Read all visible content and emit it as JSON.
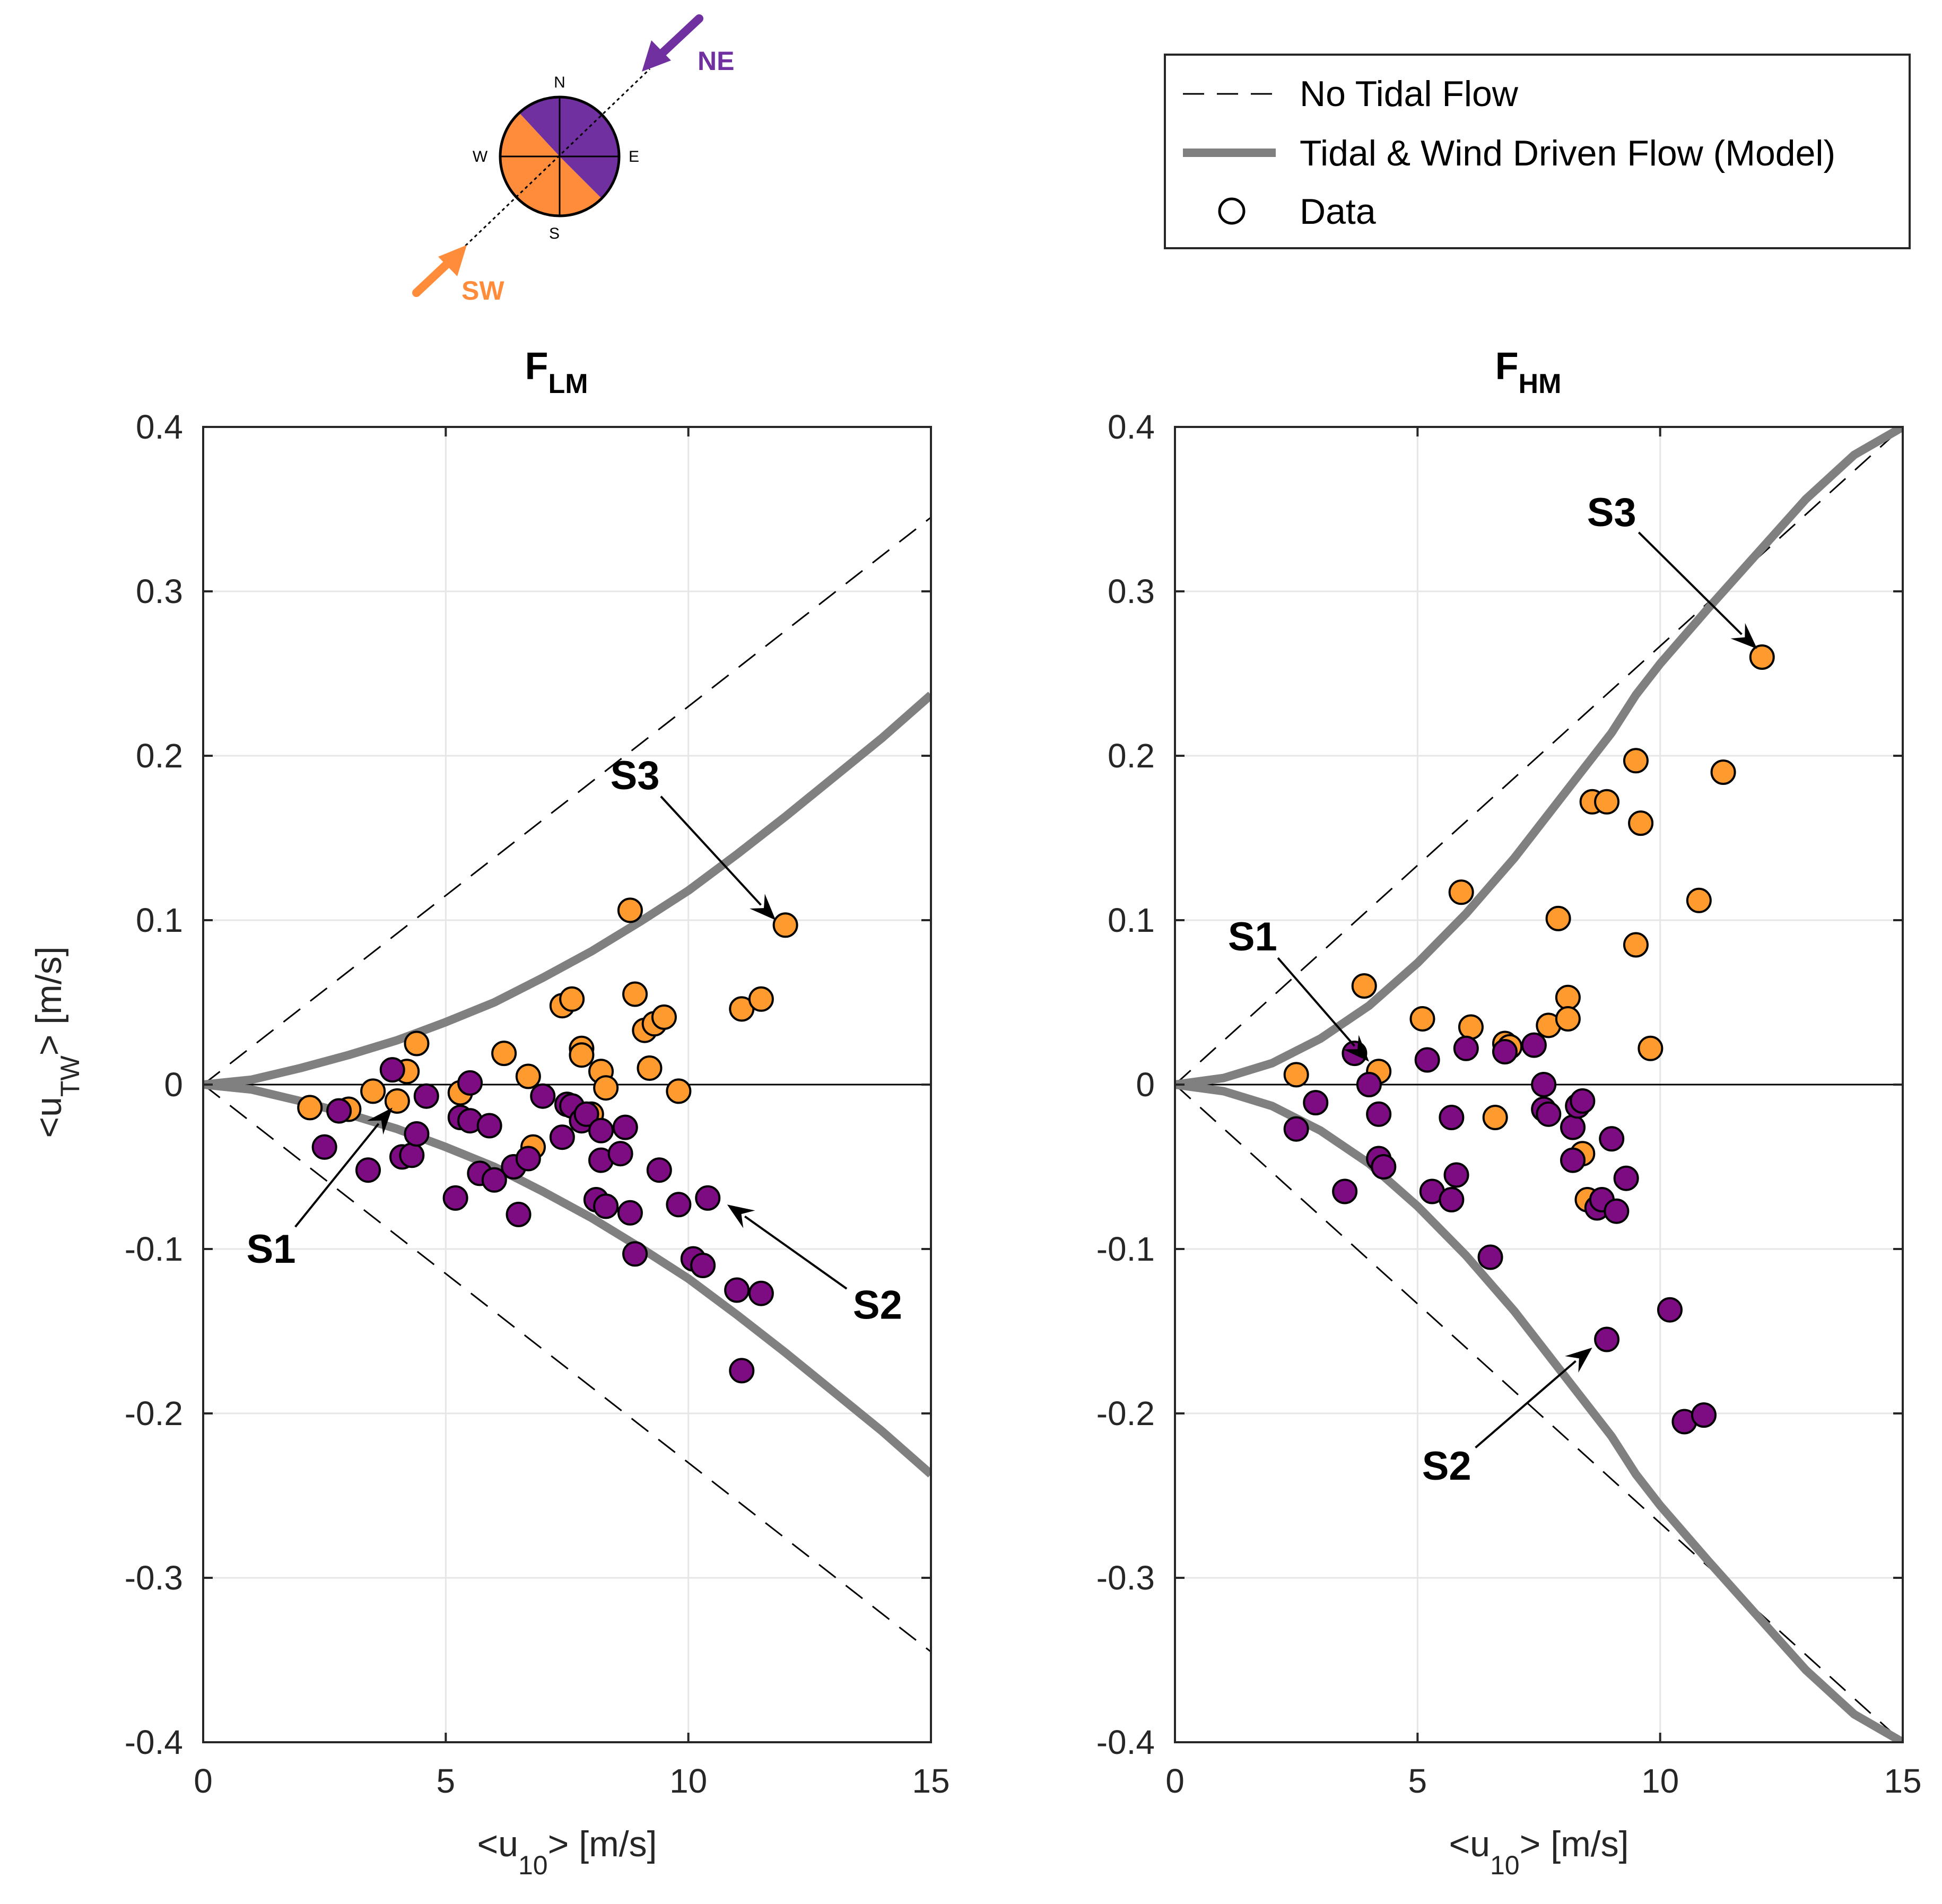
{
  "colors": {
    "orange": "#FF9A2E",
    "purple": "#7D0C82",
    "model": "#808080",
    "compass_purple": "#7030A0",
    "compass_orange": "#FF8C3A"
  },
  "legend": {
    "no_tidal": "No Tidal Flow",
    "model": "Tidal & Wind Driven Flow (Model)",
    "data": "Data"
  },
  "compass": {
    "n": "N",
    "s": "S",
    "e": "E",
    "w": "W",
    "ne": "NE",
    "sw": "SW"
  },
  "chart_data": [
    {
      "type": "scatter",
      "title": "F",
      "title_sub": "LM",
      "xlabel": "<u",
      "xlabel_sub": "10",
      "xlabel_end": "> [m/s]",
      "ylabel": "<u",
      "ylabel_sub": "TW",
      "ylabel_end": ">  [m/s]",
      "xlim": [
        0,
        15
      ],
      "ylim": [
        -0.4,
        0.4
      ],
      "xticks": [
        0,
        5,
        10,
        15
      ],
      "xtick_labels": [
        "0",
        "5",
        "10",
        "15"
      ],
      "yticks": [
        -0.4,
        -0.3,
        -0.2,
        -0.1,
        0,
        0.1,
        0.2,
        0.3,
        0.4
      ],
      "ytick_labels": [
        "-0.4",
        "-0.3",
        "-0.2",
        "-0.1",
        "0",
        "0.1",
        "0.2",
        "0.3",
        "0.4"
      ],
      "no_tidal_slope": 0.023,
      "model": {
        "x": [
          0,
          1,
          2,
          3,
          4,
          5,
          6,
          7,
          8,
          9,
          10,
          11,
          12,
          13,
          14,
          15
        ],
        "upper": [
          0,
          0.003,
          0.01,
          0.018,
          0.027,
          0.038,
          0.05,
          0.065,
          0.081,
          0.099,
          0.118,
          0.14,
          0.163,
          0.187,
          0.211,
          0.237
        ],
        "lower": [
          0,
          -0.003,
          -0.01,
          -0.018,
          -0.027,
          -0.038,
          -0.05,
          -0.065,
          -0.081,
          -0.099,
          -0.118,
          -0.14,
          -0.163,
          -0.187,
          -0.211,
          -0.237
        ]
      },
      "series": [
        {
          "name": "SW",
          "color": "orange",
          "points": [
            [
              2.2,
              -0.014
            ],
            [
              3.0,
              -0.015
            ],
            [
              3.5,
              -0.004
            ],
            [
              4.0,
              -0.01
            ],
            [
              4.2,
              0.008
            ],
            [
              4.4,
              0.025
            ],
            [
              5.3,
              -0.005
            ],
            [
              6.2,
              0.019
            ],
            [
              6.7,
              0.005
            ],
            [
              6.8,
              -0.038
            ],
            [
              7.4,
              0.048
            ],
            [
              7.6,
              0.052
            ],
            [
              7.8,
              0.022
            ],
            [
              7.8,
              0.018
            ],
            [
              8.0,
              -0.018
            ],
            [
              8.2,
              0.008
            ],
            [
              8.3,
              -0.002
            ],
            [
              8.8,
              0.106
            ],
            [
              8.9,
              0.055
            ],
            [
              9.1,
              0.033
            ],
            [
              9.2,
              0.01
            ],
            [
              9.3,
              0.037
            ],
            [
              9.5,
              0.041
            ],
            [
              9.8,
              -0.004
            ],
            [
              11.1,
              0.046
            ],
            [
              11.5,
              0.052
            ],
            [
              12.0,
              0.097
            ]
          ]
        },
        {
          "name": "NE",
          "color": "purple",
          "points": [
            [
              2.5,
              -0.038
            ],
            [
              2.8,
              -0.016
            ],
            [
              3.4,
              -0.052
            ],
            [
              3.9,
              0.009
            ],
            [
              4.1,
              -0.044
            ],
            [
              4.3,
              -0.043
            ],
            [
              4.4,
              -0.03
            ],
            [
              4.6,
              -0.007
            ],
            [
              5.2,
              -0.069
            ],
            [
              5.3,
              -0.02
            ],
            [
              5.5,
              0.001
            ],
            [
              5.5,
              -0.022
            ],
            [
              5.7,
              -0.054
            ],
            [
              5.9,
              -0.025
            ],
            [
              6.0,
              -0.058
            ],
            [
              6.4,
              -0.05
            ],
            [
              6.5,
              -0.079
            ],
            [
              6.7,
              -0.045
            ],
            [
              7.0,
              -0.007
            ],
            [
              7.4,
              -0.032
            ],
            [
              7.5,
              -0.012
            ],
            [
              7.6,
              -0.013
            ],
            [
              7.8,
              -0.022
            ],
            [
              7.9,
              -0.018
            ],
            [
              8.1,
              -0.07
            ],
            [
              8.2,
              -0.028
            ],
            [
              8.2,
              -0.046
            ],
            [
              8.3,
              -0.074
            ],
            [
              8.6,
              -0.042
            ],
            [
              8.7,
              -0.026
            ],
            [
              8.8,
              -0.078
            ],
            [
              8.9,
              -0.103
            ],
            [
              9.4,
              -0.052
            ],
            [
              9.8,
              -0.073
            ],
            [
              10.1,
              -0.106
            ],
            [
              10.3,
              -0.11
            ],
            [
              10.4,
              -0.069
            ],
            [
              11.0,
              -0.125
            ],
            [
              11.1,
              -0.174
            ],
            [
              11.5,
              -0.127
            ]
          ]
        }
      ],
      "annotations": [
        {
          "label": "S1",
          "tx": 1.4,
          "ty": -0.1,
          "hx": 3.9,
          "hy": -0.014
        },
        {
          "label": "S2",
          "tx": 13.9,
          "ty": -0.134,
          "hx": 10.8,
          "hy": -0.073
        },
        {
          "label": "S3",
          "tx": 8.9,
          "ty": 0.188,
          "hx": 11.8,
          "hy": 0.1
        }
      ]
    },
    {
      "type": "scatter",
      "title": "F",
      "title_sub": "HM",
      "xlabel": "<u",
      "xlabel_sub": "10",
      "xlabel_end": "> [m/s]",
      "xlim": [
        0,
        15
      ],
      "ylim": [
        -0.4,
        0.4
      ],
      "xticks": [
        0,
        5,
        10,
        15
      ],
      "xtick_labels": [
        "0",
        "5",
        "10",
        "15"
      ],
      "yticks": [
        -0.4,
        -0.3,
        -0.2,
        -0.1,
        0,
        0.1,
        0.2,
        0.3,
        0.4
      ],
      "ytick_labels": [
        "-0.4",
        "-0.3",
        "-0.2",
        "-0.1",
        "0",
        "0.1",
        "0.2",
        "0.3",
        "0.4"
      ],
      "no_tidal_slope": 0.02667,
      "model": {
        "x": [
          0,
          1,
          2,
          3,
          4,
          5,
          6,
          7,
          8,
          9,
          9.5,
          10,
          11,
          12,
          13,
          14,
          15
        ],
        "upper": [
          0,
          0.004,
          0.013,
          0.028,
          0.048,
          0.074,
          0.104,
          0.138,
          0.176,
          0.214,
          0.237,
          0.256,
          0.29,
          0.323,
          0.356,
          0.383,
          0.4
        ],
        "lower": [
          0,
          -0.004,
          -0.013,
          -0.028,
          -0.048,
          -0.074,
          -0.104,
          -0.138,
          -0.176,
          -0.214,
          -0.237,
          -0.256,
          -0.29,
          -0.323,
          -0.356,
          -0.383,
          -0.4
        ]
      },
      "series": [
        {
          "name": "SW",
          "color": "orange",
          "points": [
            [
              2.5,
              0.006
            ],
            [
              3.9,
              0.06
            ],
            [
              4.2,
              0.008
            ],
            [
              5.1,
              0.04
            ],
            [
              5.9,
              0.117
            ],
            [
              6.1,
              0.035
            ],
            [
              6.6,
              -0.02
            ],
            [
              6.8,
              0.025
            ],
            [
              6.9,
              0.023
            ],
            [
              7.7,
              0.036
            ],
            [
              7.9,
              0.101
            ],
            [
              8.1,
              0.053
            ],
            [
              8.1,
              0.04
            ],
            [
              8.4,
              -0.042
            ],
            [
              8.5,
              -0.07
            ],
            [
              8.6,
              0.172
            ],
            [
              8.9,
              0.172
            ],
            [
              9.5,
              0.085
            ],
            [
              9.5,
              0.197
            ],
            [
              9.6,
              0.159
            ],
            [
              9.8,
              0.022
            ],
            [
              10.8,
              0.112
            ],
            [
              11.3,
              0.19
            ],
            [
              12.1,
              0.26
            ]
          ]
        },
        {
          "name": "NE",
          "color": "purple",
          "points": [
            [
              2.5,
              -0.027
            ],
            [
              2.9,
              -0.011
            ],
            [
              3.5,
              -0.065
            ],
            [
              3.7,
              0.019
            ],
            [
              4.0,
              0.0
            ],
            [
              4.2,
              -0.018
            ],
            [
              4.2,
              -0.045
            ],
            [
              4.3,
              -0.05
            ],
            [
              5.2,
              0.015
            ],
            [
              5.3,
              -0.065
            ],
            [
              5.7,
              -0.02
            ],
            [
              5.7,
              -0.07
            ],
            [
              5.8,
              -0.055
            ],
            [
              6.0,
              0.022
            ],
            [
              6.5,
              -0.105
            ],
            [
              6.8,
              0.02
            ],
            [
              7.4,
              0.024
            ],
            [
              7.6,
              0.0
            ],
            [
              7.6,
              -0.015
            ],
            [
              7.7,
              -0.018
            ],
            [
              8.2,
              -0.026
            ],
            [
              8.2,
              -0.046
            ],
            [
              8.3,
              -0.013
            ],
            [
              8.4,
              -0.01
            ],
            [
              8.7,
              -0.075
            ],
            [
              8.8,
              -0.07
            ],
            [
              9.0,
              -0.033
            ],
            [
              9.1,
              -0.077
            ],
            [
              9.3,
              -0.057
            ],
            [
              8.9,
              -0.155
            ],
            [
              10.2,
              -0.137
            ],
            [
              10.5,
              -0.205
            ],
            [
              10.9,
              -0.201
            ]
          ]
        }
      ],
      "annotations": [
        {
          "label": "S1",
          "tx": 1.6,
          "ty": 0.09,
          "hx": 4.0,
          "hy": 0.014
        },
        {
          "label": "S2",
          "tx": 5.6,
          "ty": -0.232,
          "hx": 8.6,
          "hy": -0.16
        },
        {
          "label": "S3",
          "tx": 9.0,
          "ty": 0.348,
          "hx": 12.0,
          "hy": 0.265
        }
      ]
    }
  ]
}
